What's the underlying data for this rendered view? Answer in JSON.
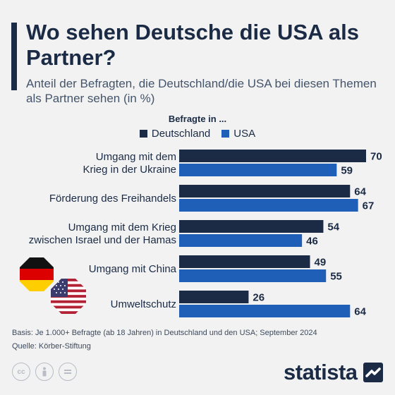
{
  "header": {
    "title": "Wo sehen Deutsche die USA als Partner?",
    "subtitle": "Anteil der Befragten, die Deutschland/die USA bei diesen Themen als Partner sehen (in %)"
  },
  "legend": {
    "title": "Befragte in ...",
    "items": [
      {
        "label": "Deutschland",
        "color": "#1b2b45"
      },
      {
        "label": "USA",
        "color": "#1f5fb8"
      }
    ]
  },
  "chart_data": {
    "type": "bar",
    "orientation": "horizontal",
    "categories": [
      [
        "Umgang mit dem",
        "Krieg in der Ukraine"
      ],
      [
        "Förderung des Freihandels"
      ],
      [
        "Umgang mit dem Krieg",
        "zwischen Israel und der Hamas"
      ],
      [
        "Umgang mit China"
      ],
      [
        "Umweltschutz"
      ]
    ],
    "series": [
      {
        "name": "Deutschland",
        "color": "#1b2b45",
        "values": [
          70,
          64,
          54,
          49,
          26
        ]
      },
      {
        "name": "USA",
        "color": "#1f5fb8",
        "values": [
          59,
          67,
          46,
          55,
          64
        ]
      }
    ],
    "xlim": [
      0,
      70
    ],
    "data_labels": true,
    "legend_position": "top"
  },
  "footer": {
    "basis": "Basis: Je 1.000+ Befragte (ab 18 Jahren) in Deutschland und den USA; September 2024",
    "source": "Quelle: Körber-Stiftung",
    "license_icons": [
      "cc-icon",
      "attribution-icon",
      "no-derivatives-icon"
    ],
    "logo": "statista"
  },
  "flags": [
    "germany-flag",
    "usa-flag"
  ]
}
